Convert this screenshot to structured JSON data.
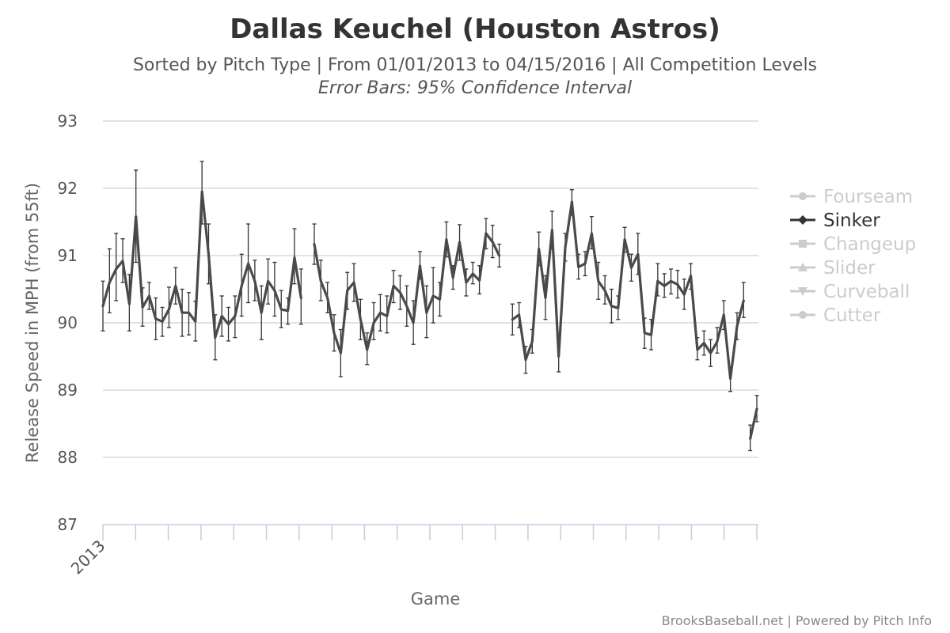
{
  "chart_data": {
    "type": "line",
    "title": "Dallas Keuchel (Houston Astros)",
    "subtitle": "Sorted by Pitch Type | From 01/01/2013 to 04/15/2016 | All Competition Levels",
    "subtitle2": "Error Bars: 95% Confidence Interval",
    "xlabel": "Game",
    "ylabel": "Release Speed in MPH (from 55ft)",
    "ylim": [
      87,
      93
    ],
    "yticks": [
      87,
      88,
      89,
      90,
      91,
      92,
      93
    ],
    "xlim": [
      1,
      100
    ],
    "x_tick_labels": [
      {
        "x": 1,
        "label": "2013"
      }
    ],
    "legend": {
      "placement": "right",
      "items": [
        {
          "name": "Fourseam",
          "active": false
        },
        {
          "name": "Sinker",
          "active": true
        },
        {
          "name": "Changeup",
          "active": false
        },
        {
          "name": "Slider",
          "active": false
        },
        {
          "name": "Curveball",
          "active": false
        },
        {
          "name": "Cutter",
          "active": false
        }
      ]
    },
    "series": [
      {
        "name": "Sinker",
        "color": "#4a4a4a",
        "segments": [
          [
            {
              "x": 1,
              "y": 90.25,
              "lo": 89.88,
              "hi": 90.62
            },
            {
              "x": 2,
              "y": 90.6,
              "lo": 90.15,
              "hi": 91.1
            },
            {
              "x": 3,
              "y": 90.8,
              "lo": 90.33,
              "hi": 91.33
            },
            {
              "x": 4,
              "y": 90.92,
              "lo": 90.6,
              "hi": 91.25
            },
            {
              "x": 5,
              "y": 90.28,
              "lo": 89.88,
              "hi": 90.72
            },
            {
              "x": 6,
              "y": 91.58,
              "lo": 90.9,
              "hi": 92.27
            },
            {
              "x": 7,
              "y": 90.23,
              "lo": 89.95,
              "hi": 90.52
            },
            {
              "x": 8,
              "y": 90.4,
              "lo": 90.2,
              "hi": 90.6
            },
            {
              "x": 9,
              "y": 90.06,
              "lo": 89.75,
              "hi": 90.37
            },
            {
              "x": 10,
              "y": 90.02,
              "lo": 89.8,
              "hi": 90.23
            },
            {
              "x": 11,
              "y": 90.2,
              "lo": 89.93,
              "hi": 90.53
            },
            {
              "x": 12,
              "y": 90.55,
              "lo": 90.28,
              "hi": 90.82
            },
            {
              "x": 13,
              "y": 90.15,
              "lo": 89.8,
              "hi": 90.5
            },
            {
              "x": 14,
              "y": 90.15,
              "lo": 89.82,
              "hi": 90.45
            },
            {
              "x": 15,
              "y": 90.02,
              "lo": 89.73,
              "hi": 90.32
            },
            {
              "x": 16,
              "y": 91.95,
              "lo": 91.47,
              "hi": 92.4
            },
            {
              "x": 17,
              "y": 91.02,
              "lo": 90.58,
              "hi": 91.47
            },
            {
              "x": 18,
              "y": 89.78,
              "lo": 89.45,
              "hi": 90.12
            },
            {
              "x": 19,
              "y": 90.1,
              "lo": 89.8,
              "hi": 90.4
            },
            {
              "x": 20,
              "y": 89.98,
              "lo": 89.73,
              "hi": 90.23
            },
            {
              "x": 21,
              "y": 90.1,
              "lo": 89.78,
              "hi": 90.4
            },
            {
              "x": 22,
              "y": 90.55,
              "lo": 90.1,
              "hi": 91.02
            },
            {
              "x": 23,
              "y": 90.88,
              "lo": 90.3,
              "hi": 91.47
            },
            {
              "x": 24,
              "y": 90.62,
              "lo": 90.33,
              "hi": 90.93
            },
            {
              "x": 25,
              "y": 90.15,
              "lo": 89.75,
              "hi": 90.55
            },
            {
              "x": 26,
              "y": 90.62,
              "lo": 90.28,
              "hi": 90.95
            },
            {
              "x": 27,
              "y": 90.48,
              "lo": 90.1,
              "hi": 90.9
            },
            {
              "x": 28,
              "y": 90.2,
              "lo": 89.93,
              "hi": 90.48
            },
            {
              "x": 29,
              "y": 90.18,
              "lo": 89.98,
              "hi": 90.37
            },
            {
              "x": 30,
              "y": 90.97,
              "lo": 90.58,
              "hi": 91.4
            },
            {
              "x": 31,
              "y": 90.37,
              "lo": 89.98,
              "hi": 90.8
            }
          ],
          [
            {
              "x": 33,
              "y": 91.17,
              "lo": 90.87,
              "hi": 91.47
            },
            {
              "x": 34,
              "y": 90.62,
              "lo": 90.33,
              "hi": 90.93
            },
            {
              "x": 35,
              "y": 90.37,
              "lo": 90.15,
              "hi": 90.6
            },
            {
              "x": 36,
              "y": 89.85,
              "lo": 89.58,
              "hi": 90.12
            },
            {
              "x": 37,
              "y": 89.55,
              "lo": 89.2,
              "hi": 89.9
            },
            {
              "x": 38,
              "y": 90.48,
              "lo": 90.2,
              "hi": 90.75
            },
            {
              "x": 39,
              "y": 90.6,
              "lo": 90.32,
              "hi": 90.88
            },
            {
              "x": 40,
              "y": 90.05,
              "lo": 89.75,
              "hi": 90.35
            },
            {
              "x": 41,
              "y": 89.6,
              "lo": 89.38,
              "hi": 89.85
            },
            {
              "x": 42,
              "y": 90.0,
              "lo": 89.75,
              "hi": 90.3
            },
            {
              "x": 43,
              "y": 90.15,
              "lo": 89.88,
              "hi": 90.42
            },
            {
              "x": 44,
              "y": 90.1,
              "lo": 89.85,
              "hi": 90.4
            },
            {
              "x": 45,
              "y": 90.55,
              "lo": 90.3,
              "hi": 90.78
            },
            {
              "x": 46,
              "y": 90.45,
              "lo": 90.2,
              "hi": 90.7
            },
            {
              "x": 47,
              "y": 90.25,
              "lo": 89.95,
              "hi": 90.55
            },
            {
              "x": 48,
              "y": 90.0,
              "lo": 89.68,
              "hi": 90.33
            },
            {
              "x": 49,
              "y": 90.85,
              "lo": 90.65,
              "hi": 91.06
            },
            {
              "x": 50,
              "y": 90.15,
              "lo": 89.78,
              "hi": 90.55
            },
            {
              "x": 51,
              "y": 90.4,
              "lo": 90.0,
              "hi": 90.82
            },
            {
              "x": 52,
              "y": 90.35,
              "lo": 90.1,
              "hi": 90.6
            },
            {
              "x": 53,
              "y": 91.24,
              "lo": 90.98,
              "hi": 91.5
            },
            {
              "x": 54,
              "y": 90.67,
              "lo": 90.5,
              "hi": 90.85
            },
            {
              "x": 55,
              "y": 91.2,
              "lo": 90.93,
              "hi": 91.46
            },
            {
              "x": 56,
              "y": 90.6,
              "lo": 90.4,
              "hi": 90.8
            },
            {
              "x": 57,
              "y": 90.73,
              "lo": 90.58,
              "hi": 90.9
            },
            {
              "x": 58,
              "y": 90.63,
              "lo": 90.43,
              "hi": 90.85
            },
            {
              "x": 59,
              "y": 91.33,
              "lo": 91.1,
              "hi": 91.55
            },
            {
              "x": 60,
              "y": 91.2,
              "lo": 90.97,
              "hi": 91.45
            },
            {
              "x": 61,
              "y": 91.0,
              "lo": 90.83,
              "hi": 91.17
            }
          ],
          [
            {
              "x": 63,
              "y": 90.05,
              "lo": 89.82,
              "hi": 90.28
            },
            {
              "x": 64,
              "y": 90.12,
              "lo": 89.93,
              "hi": 90.3
            },
            {
              "x": 65,
              "y": 89.45,
              "lo": 89.25,
              "hi": 89.65
            },
            {
              "x": 66,
              "y": 89.72,
              "lo": 89.55,
              "hi": 89.9
            },
            {
              "x": 67,
              "y": 91.1,
              "lo": 90.85,
              "hi": 91.35
            },
            {
              "x": 68,
              "y": 90.37,
              "lo": 90.05,
              "hi": 90.7
            },
            {
              "x": 69,
              "y": 91.38,
              "lo": 91.1,
              "hi": 91.66
            },
            {
              "x": 70,
              "y": 89.5,
              "lo": 89.27,
              "hi": 89.75
            },
            {
              "x": 71,
              "y": 91.12,
              "lo": 90.92,
              "hi": 91.33
            },
            {
              "x": 72,
              "y": 91.8,
              "lo": 91.6,
              "hi": 91.98
            },
            {
              "x": 73,
              "y": 90.83,
              "lo": 90.65,
              "hi": 91.02
            },
            {
              "x": 74,
              "y": 90.88,
              "lo": 90.7,
              "hi": 91.06
            },
            {
              "x": 75,
              "y": 91.33,
              "lo": 91.1,
              "hi": 91.58
            },
            {
              "x": 76,
              "y": 90.62,
              "lo": 90.35,
              "hi": 90.9
            },
            {
              "x": 77,
              "y": 90.48,
              "lo": 90.28,
              "hi": 90.7
            },
            {
              "x": 78,
              "y": 90.25,
              "lo": 90.0,
              "hi": 90.5
            },
            {
              "x": 79,
              "y": 90.22,
              "lo": 90.05,
              "hi": 90.4
            },
            {
              "x": 80,
              "y": 91.24,
              "lo": 91.05,
              "hi": 91.42
            },
            {
              "x": 81,
              "y": 90.82,
              "lo": 90.62,
              "hi": 91.02
            },
            {
              "x": 82,
              "y": 91.02,
              "lo": 90.72,
              "hi": 91.33
            },
            {
              "x": 83,
              "y": 89.85,
              "lo": 89.62,
              "hi": 90.07
            },
            {
              "x": 84,
              "y": 89.82,
              "lo": 89.6,
              "hi": 90.05
            },
            {
              "x": 85,
              "y": 90.62,
              "lo": 90.4,
              "hi": 90.88
            },
            {
              "x": 86,
              "y": 90.55,
              "lo": 90.38,
              "hi": 90.73
            },
            {
              "x": 87,
              "y": 90.62,
              "lo": 90.43,
              "hi": 90.8
            },
            {
              "x": 88,
              "y": 90.57,
              "lo": 90.37,
              "hi": 90.78
            },
            {
              "x": 89,
              "y": 90.42,
              "lo": 90.2,
              "hi": 90.65
            },
            {
              "x": 90,
              "y": 90.7,
              "lo": 90.5,
              "hi": 90.88
            },
            {
              "x": 91,
              "y": 89.6,
              "lo": 89.45,
              "hi": 89.78
            },
            {
              "x": 92,
              "y": 89.7,
              "lo": 89.52,
              "hi": 89.88
            },
            {
              "x": 93,
              "y": 89.55,
              "lo": 89.35,
              "hi": 89.75
            },
            {
              "x": 94,
              "y": 89.72,
              "lo": 89.55,
              "hi": 89.93
            },
            {
              "x": 95,
              "y": 90.12,
              "lo": 89.9,
              "hi": 90.33
            },
            {
              "x": 96,
              "y": 89.17,
              "lo": 88.98,
              "hi": 89.35
            },
            {
              "x": 97,
              "y": 89.95,
              "lo": 89.75,
              "hi": 90.15
            },
            {
              "x": 98,
              "y": 90.33,
              "lo": 90.08,
              "hi": 90.6
            }
          ],
          [
            {
              "x": 99,
              "y": 88.28,
              "lo": 88.1,
              "hi": 88.48
            },
            {
              "x": 100,
              "y": 88.72,
              "lo": 88.53,
              "hi": 88.92
            }
          ]
        ]
      }
    ],
    "grid": true
  },
  "credits": "BrooksBaseball.net | Powered by Pitch Info"
}
